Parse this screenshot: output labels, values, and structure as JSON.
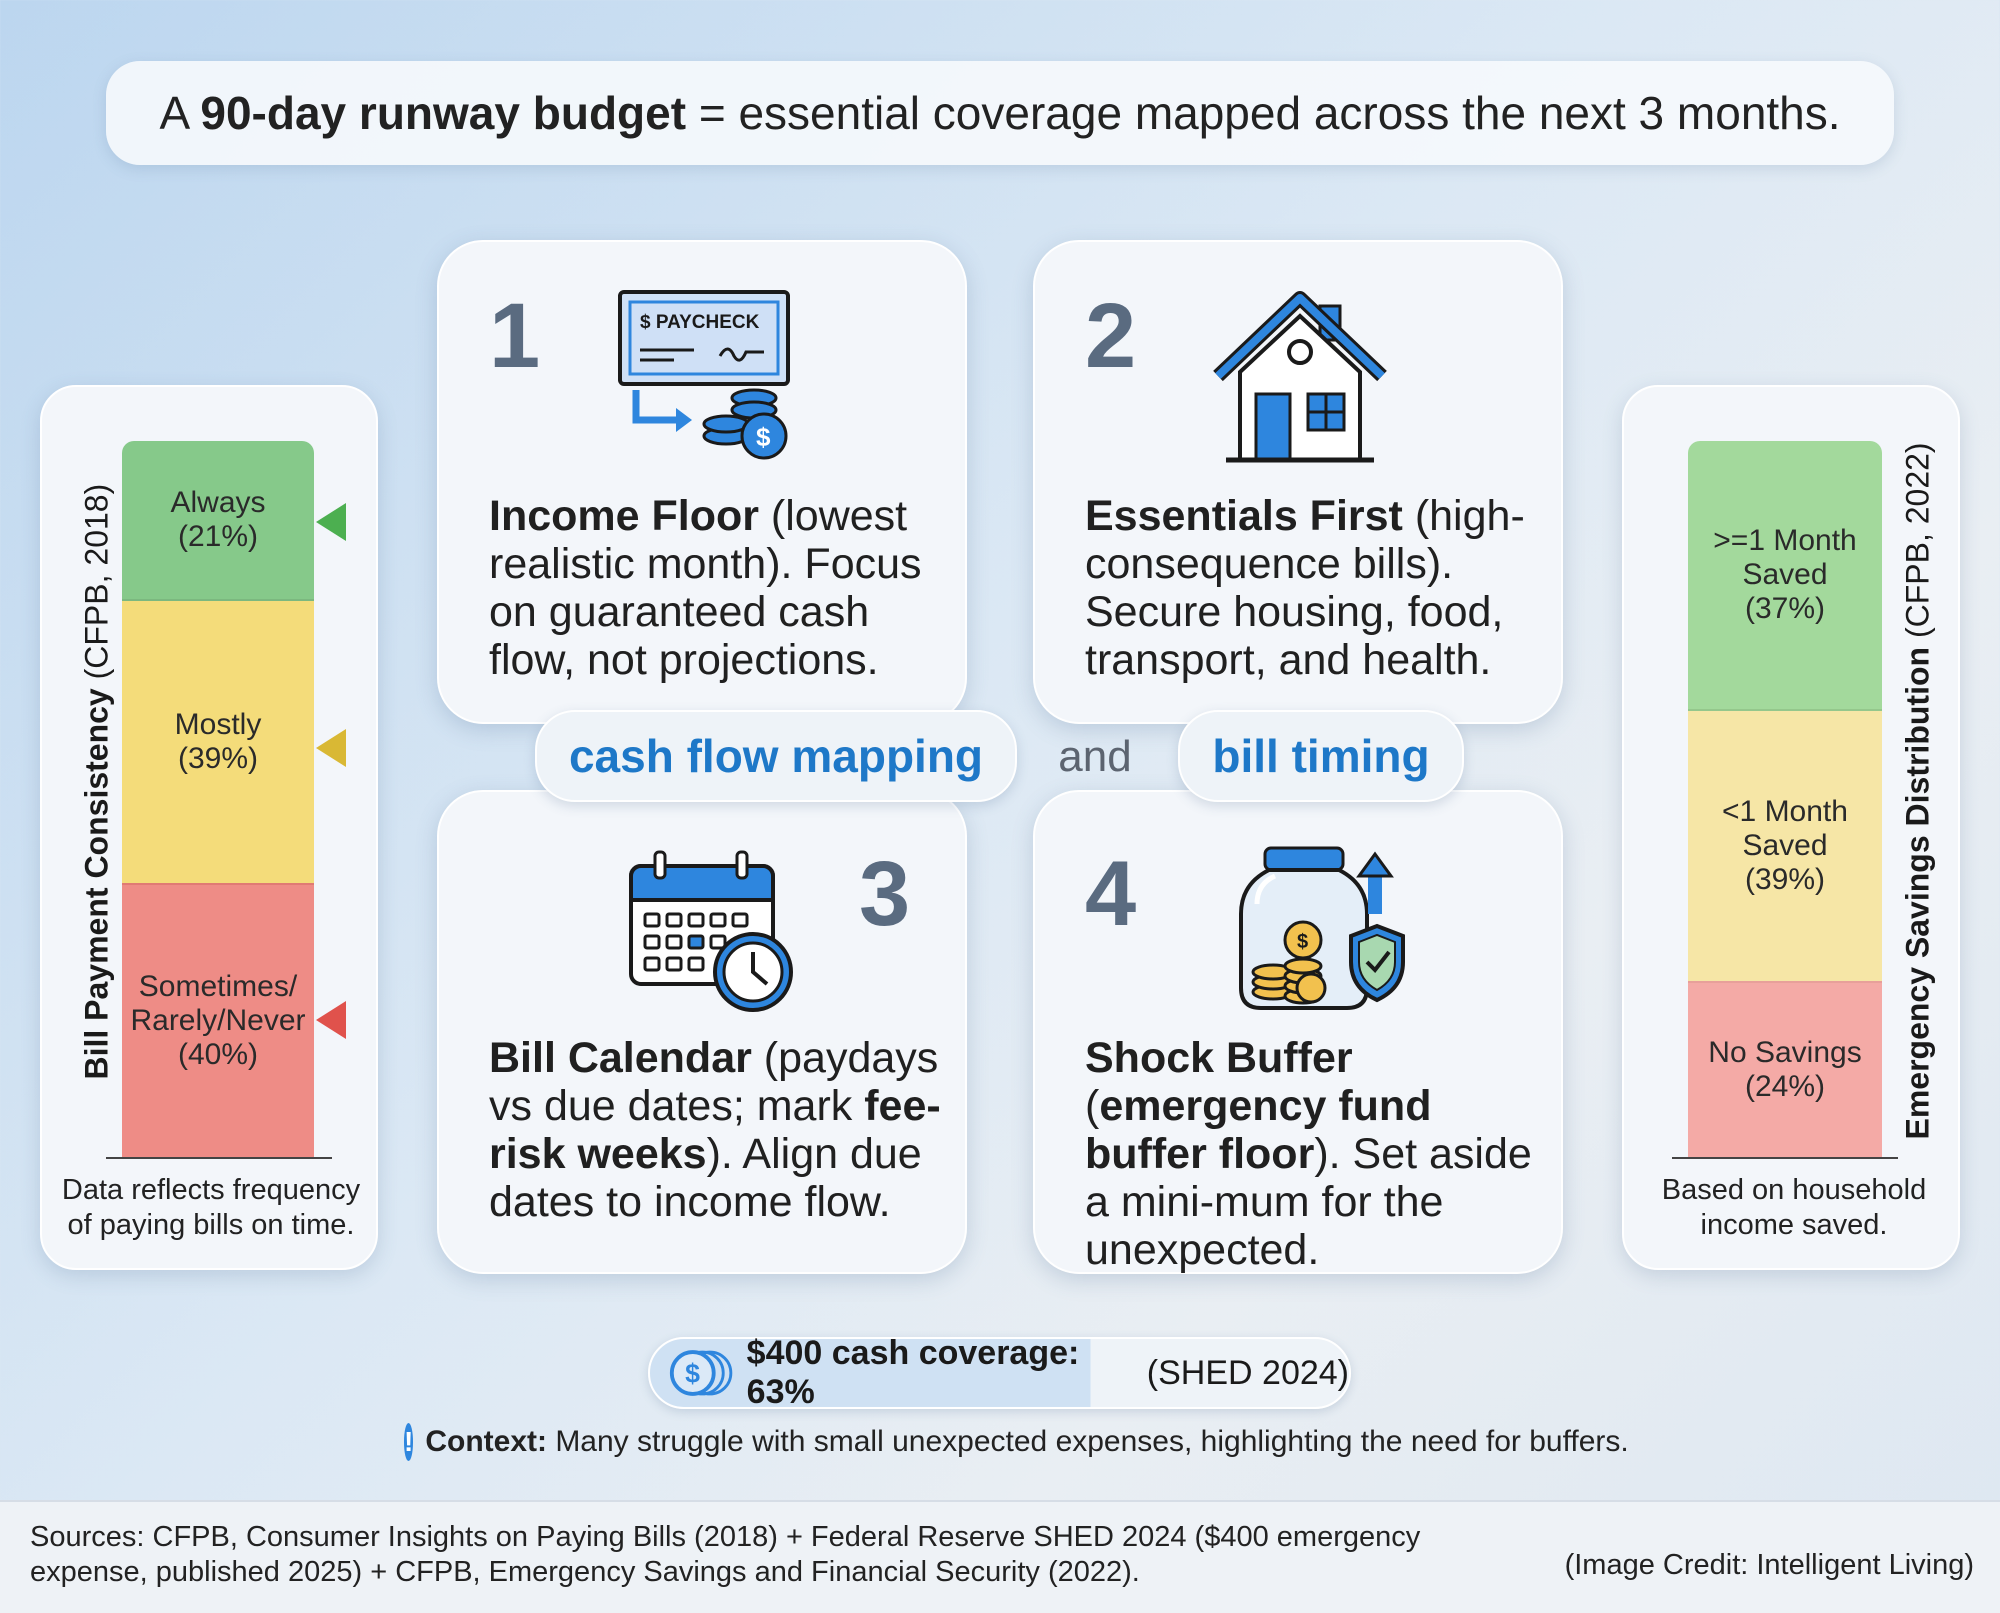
{
  "headline": {
    "prefix": "A ",
    "bold": "90-day runway budget",
    "suffix": " = essential coverage mapped across the next 3 months."
  },
  "cards": [
    {
      "number": "1",
      "bold": "Income Floor",
      "text": " (lowest realistic month). Focus on guaranteed cash flow, not projections.",
      "icon": "paycheck-icon",
      "icon_text": "$ PAYCHECK"
    },
    {
      "number": "2",
      "bold": "Essentials First",
      "text": " (high-consequence bills). Secure housing, food, transport, and health.",
      "icon": "house-icon"
    },
    {
      "number": "3",
      "bold": "Bill Calendar",
      "text_a": " (paydays vs due dates; mark ",
      "bold_b": "fee-risk weeks",
      "text_c": "). Align due dates to income flow.",
      "icon": "calendar-clock-icon"
    },
    {
      "number": "4",
      "bold": "Shock Buffer",
      "text_a": " (",
      "bold_b": "emergency fund buffer floor",
      "text_c": "). Set aside a mini-mum for the unexpected.",
      "icon": "savings-jar-icon"
    }
  ],
  "connectors": {
    "left": "cash flow mapping",
    "middle": "and",
    "right": "bill timing"
  },
  "left_panel": {
    "title_bold": "Bill Payment Consistency",
    "title_rest": " (CFPB, 2018)",
    "segments": [
      {
        "label": "Always",
        "pct": "(21%)",
        "value": 21,
        "color": "#86c98a",
        "marker": "#4caf50"
      },
      {
        "label": "Mostly",
        "pct": "(39%)",
        "value": 39,
        "color": "#f4dc7a",
        "marker": "#d9b834"
      },
      {
        "label": "Sometimes/ Rarely/Never",
        "pct": "(40%)",
        "value": 40,
        "color": "#ee8c86",
        "marker": "#e0524c"
      }
    ],
    "caption": "Data reflects frequency of paying bills on time."
  },
  "right_panel": {
    "title_bold": "Emergency Savings Distribution",
    "title_rest": " (CFPB, 2022)",
    "segments": [
      {
        "label": ">=1 Month Saved",
        "pct": "(37%)",
        "value": 37,
        "color": "#a3d99c"
      },
      {
        "label": "<1 Month Saved",
        "pct": "(39%)",
        "value": 39,
        "color": "#f6e6a6"
      },
      {
        "label": "No Savings",
        "pct": "(24%)",
        "value": 24,
        "color": "#f4aaa6"
      }
    ],
    "caption": "Based on household income saved."
  },
  "coverage": {
    "bold": "$400 cash coverage: 63%",
    "rest": " (SHED 2024)",
    "value": 63,
    "icon": "coin-stack-icon"
  },
  "context": {
    "bold": "Context:",
    "text": " Many struggle with small unexpected expenses, highlighting the need for buffers.",
    "icon": "info-icon"
  },
  "footer": {
    "sources": "Sources: CFPB, Consumer Insights on Paying Bills (2018) + Federal Reserve SHED 2024 ($400 emergency expense, published 2025) + CFPB, Emergency Savings and Financial Security (2022).",
    "credit": "(Image Credit: Intelligent Living)"
  },
  "colors": {
    "accent_blue": "#1e78c8",
    "number_gray": "#5a6b80"
  }
}
